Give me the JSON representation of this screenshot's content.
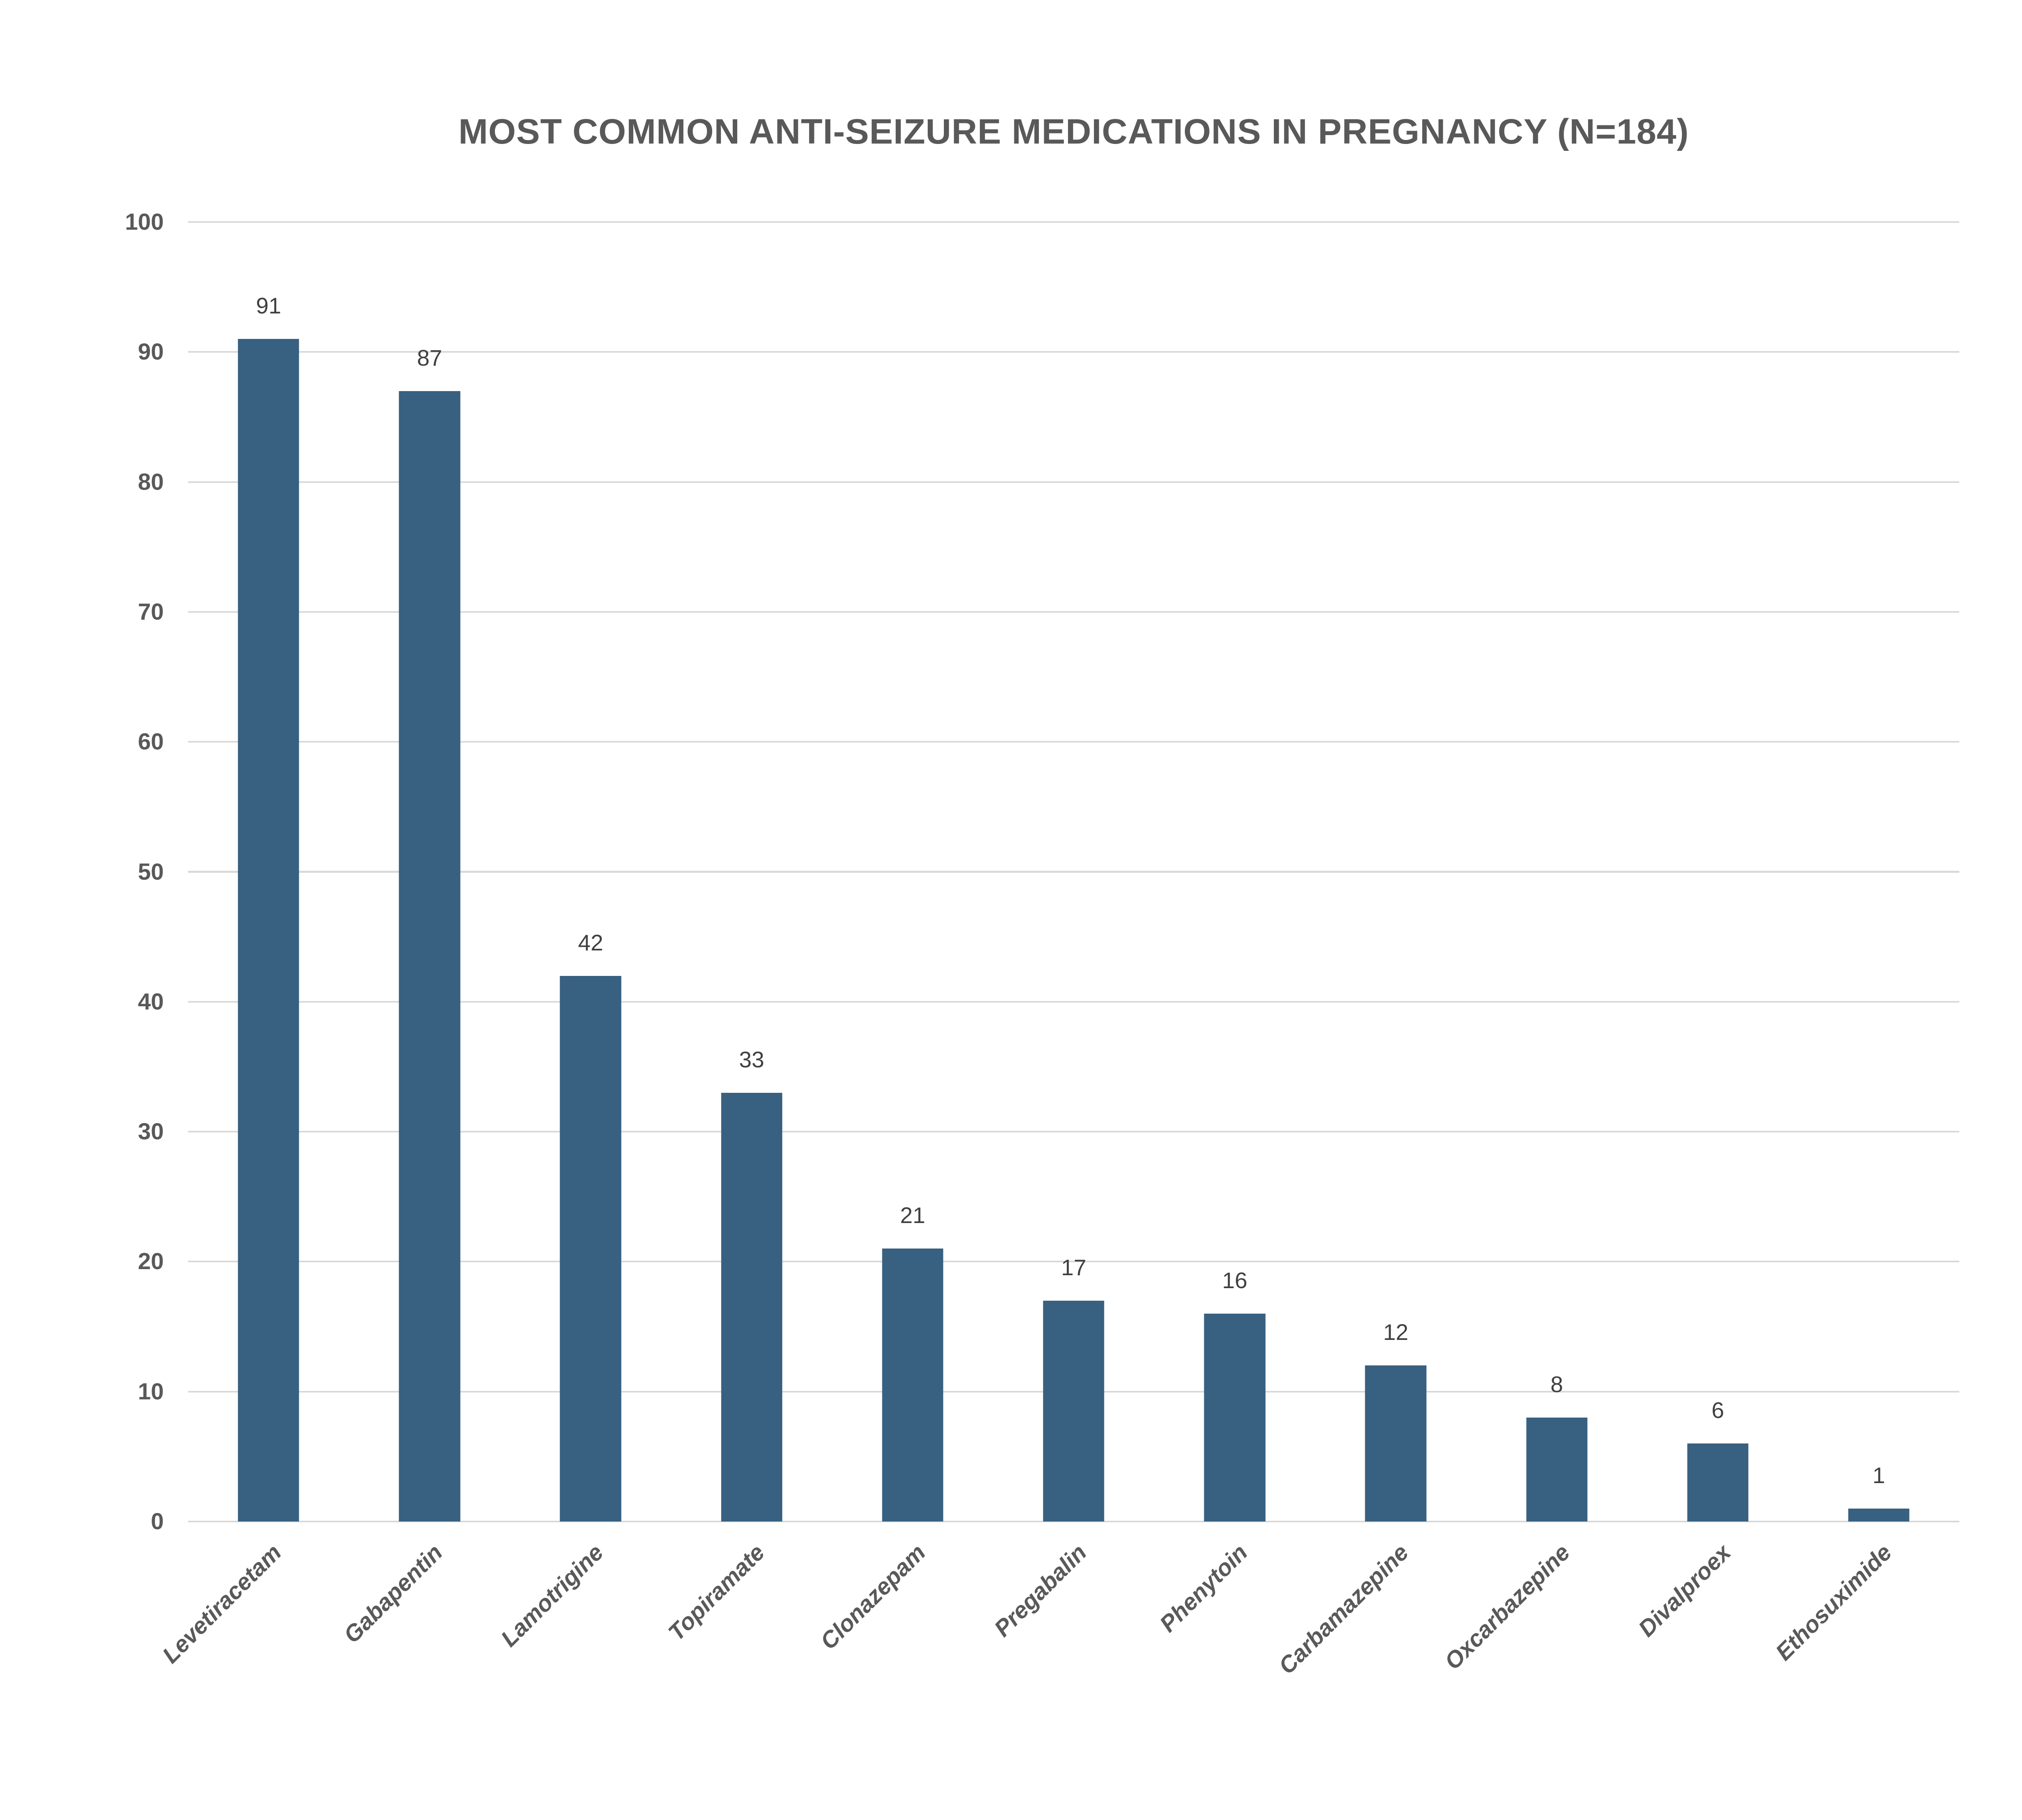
{
  "chart_data": {
    "type": "bar",
    "title": "MOST COMMON ANTI-SEIZURE MEDICATIONS IN PREGNANCY (N=184)",
    "categories": [
      "Levetiracetam",
      "Gabapentin",
      "Lamotrigine",
      "Topiramate",
      "Clonazepam",
      "Pregabalin",
      "Phenytoin",
      "Carbamazepine",
      "Oxcarbazepine",
      "Divalproex",
      "Ethosuximide"
    ],
    "values": [
      91,
      87,
      42,
      33,
      21,
      17,
      16,
      12,
      8,
      6,
      1
    ],
    "value_labels_shown": true,
    "xlabel": "",
    "ylabel": "",
    "ylim": [
      0,
      100
    ],
    "yticks": [
      0,
      10,
      20,
      30,
      40,
      50,
      60,
      70,
      80,
      90,
      100
    ],
    "grid": "horizontal",
    "legend_position": "none",
    "colors": {
      "bar": "#386080",
      "gridline": "#D9D9D9",
      "axis_tick_label": "#595959",
      "value_label": "#404040",
      "title": "#595959",
      "background": "#FFFFFF"
    }
  }
}
